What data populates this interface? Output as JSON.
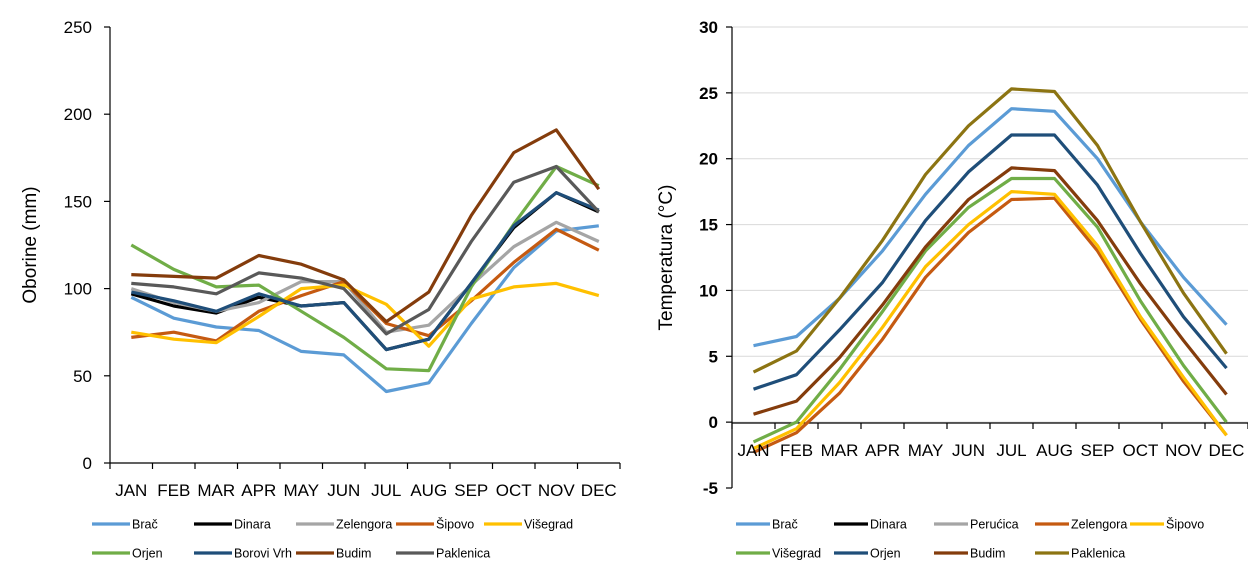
{
  "chart_data": [
    {
      "type": "line",
      "ylabel": "Oborine (mm)",
      "xlabel": "",
      "ylim": [
        0,
        250
      ],
      "yticks": [
        0,
        50,
        100,
        150,
        200,
        250
      ],
      "grid": false,
      "legend": "bottom",
      "categories": [
        "JAN",
        "FEB",
        "MAR",
        "APR",
        "MAY",
        "JUN",
        "JUL",
        "AUG",
        "SEP",
        "OCT",
        "NOV",
        "DEC"
      ],
      "series": [
        {
          "name": "Brač",
          "color": "#5b9bd5",
          "values": [
            95,
            83,
            78,
            76,
            64,
            62,
            41,
            46,
            80,
            112,
            133,
            136
          ]
        },
        {
          "name": "Dinara",
          "color": "#000000",
          "values": [
            97,
            90,
            86,
            95,
            90,
            92,
            65,
            71,
            103,
            135,
            155,
            144
          ]
        },
        {
          "name": "Zelengora",
          "color": "#a5a5a5",
          "values": [
            100,
            92,
            87,
            92,
            104,
            104,
            75,
            79,
            102,
            124,
            138,
            127
          ]
        },
        {
          "name": "Šipovo",
          "color": "#c55a11",
          "values": [
            72,
            75,
            70,
            87,
            96,
            104,
            80,
            73,
            93,
            115,
            134,
            122
          ]
        },
        {
          "name": "Višegrad",
          "color": "#ffc000",
          "values": [
            75,
            71,
            69,
            84,
            100,
            102,
            91,
            67,
            94,
            101,
            103,
            96
          ]
        },
        {
          "name": "Orjen",
          "color": "#70ad47",
          "values": [
            125,
            111,
            101,
            102,
            87,
            72,
            54,
            53,
            101,
            137,
            170,
            159
          ]
        },
        {
          "name": "Borovi Vrh",
          "color": "#1f4e79",
          "values": [
            98,
            93,
            87,
            97,
            90,
            92,
            65,
            71,
            103,
            136,
            155,
            145
          ]
        },
        {
          "name": "Budim",
          "color": "#843c0c",
          "values": [
            108,
            107,
            106,
            119,
            114,
            105,
            81,
            98,
            142,
            178,
            191,
            157
          ]
        },
        {
          "name": "Paklenica",
          "color": "#595959",
          "values": [
            103,
            101,
            97,
            109,
            106,
            100,
            74,
            88,
            127,
            161,
            170,
            144
          ]
        }
      ]
    },
    {
      "type": "line",
      "ylabel": "Temperatura (°C)",
      "xlabel": "",
      "ylim": [
        -5,
        30
      ],
      "yticks": [
        -5,
        0,
        5,
        10,
        15,
        20,
        25,
        30
      ],
      "grid": true,
      "legend": "bottom",
      "categories": [
        "JAN",
        "FEB",
        "MAR",
        "APR",
        "MAY",
        "JUN",
        "JUL",
        "AUG",
        "SEP",
        "OCT",
        "NOV",
        "DEC"
      ],
      "series": [
        {
          "name": "Brač",
          "color": "#5b9bd5",
          "values": [
            5.8,
            6.5,
            9.4,
            13.0,
            17.3,
            21.0,
            23.8,
            23.6,
            20.0,
            15.2,
            11.0,
            7.4
          ]
        },
        {
          "name": "Dinara",
          "color": "#000000",
          "values": [
            null,
            null,
            null,
            null,
            null,
            null,
            null,
            null,
            null,
            null,
            null,
            null
          ]
        },
        {
          "name": "Perućica",
          "color": "#a5a5a5",
          "values": [
            null,
            null,
            null,
            null,
            null,
            null,
            null,
            null,
            null,
            null,
            null,
            null
          ]
        },
        {
          "name": "Zelengora",
          "color": "#c55a11",
          "values": [
            -2.3,
            -0.8,
            2.2,
            6.3,
            11.0,
            14.4,
            16.9,
            17.0,
            13.0,
            7.8,
            3.1,
            -1.0
          ]
        },
        {
          "name": "Šipovo",
          "color": "#ffc000",
          "values": [
            -2.0,
            -0.5,
            3.0,
            7.2,
            11.8,
            15.0,
            17.5,
            17.3,
            13.4,
            8.0,
            3.4,
            -1.0
          ]
        },
        {
          "name": "Višegrad",
          "color": "#70ad47",
          "values": [
            -1.5,
            0.0,
            4.0,
            8.4,
            13.0,
            16.3,
            18.5,
            18.5,
            14.8,
            9.2,
            4.3,
            0.0
          ]
        },
        {
          "name": "Orjen",
          "color": "#1f4e79",
          "values": [
            2.5,
            3.6,
            7.0,
            10.6,
            15.3,
            19.0,
            21.8,
            21.8,
            18.0,
            12.8,
            8.0,
            4.1
          ]
        },
        {
          "name": "Budim",
          "color": "#843c0c",
          "values": [
            0.6,
            1.6,
            4.9,
            8.9,
            13.3,
            16.9,
            19.3,
            19.1,
            15.3,
            10.5,
            6.2,
            2.1
          ]
        },
        {
          "name": "Paklenica",
          "color": "#8c7412",
          "values": [
            3.8,
            5.4,
            9.4,
            13.8,
            18.8,
            22.5,
            25.3,
            25.1,
            21.0,
            15.2,
            9.8,
            5.2
          ]
        }
      ]
    }
  ]
}
